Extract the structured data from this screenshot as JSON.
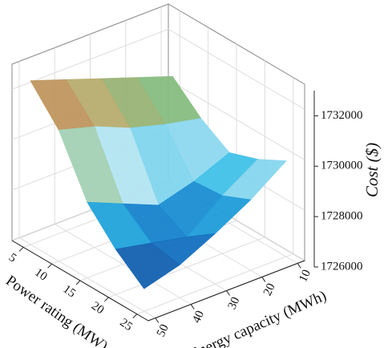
{
  "chart_data": {
    "type": "surface",
    "x_label": "Power rating (MW)",
    "y_label": "Energy capacity (MWh)",
    "z_label": "Cost ($)",
    "x": [
      5,
      10,
      15,
      20,
      25
    ],
    "y": [
      10,
      20,
      30,
      40,
      50
    ],
    "z": [
      [
        1730500,
        1731000,
        1731500,
        1732000,
        1732500
      ],
      [
        1729500,
        1729800,
        1730200,
        1730800,
        1731200
      ],
      [
        1728800,
        1728200,
        1727800,
        1728400,
        1729000
      ],
      [
        1729200,
        1728300,
        1727200,
        1727500,
        1727800
      ],
      [
        1729800,
        1728800,
        1728000,
        1727300,
        1726900
      ]
    ],
    "xlim": [
      3,
      27
    ],
    "xticks": [
      5,
      10,
      15,
      20,
      25
    ],
    "ylim": [
      8,
      52
    ],
    "yticks": [
      10,
      20,
      30,
      40,
      50
    ],
    "zlim": [
      1726000,
      1733000
    ],
    "zticks": [
      1726000,
      1728000,
      1730000,
      1732000
    ],
    "grid": true
  }
}
